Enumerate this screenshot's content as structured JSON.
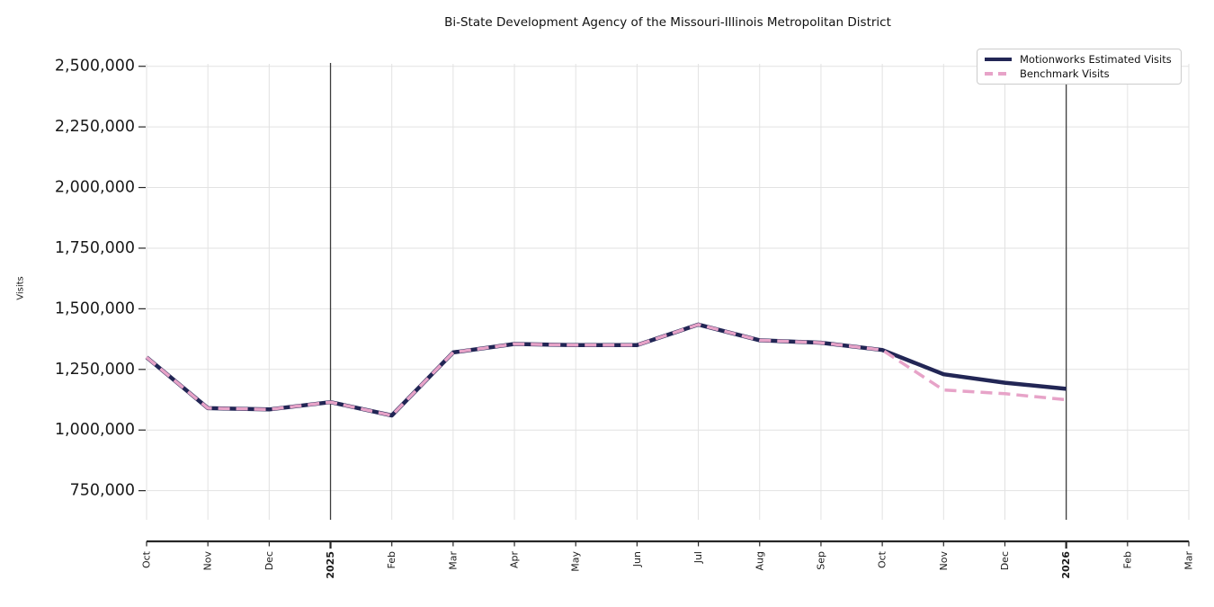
{
  "title": "Bi-State Development Agency of the Missouri-Illinois Metropolitan District",
  "legend": {
    "items": [
      {
        "label": "Motionworks Estimated Visits"
      },
      {
        "label": "Benchmark Visits"
      }
    ]
  },
  "chart_data": {
    "type": "line",
    "title": "Bi-State Development Agency of the Missouri-Illinois Metropolitan District",
    "xlabel": "",
    "ylabel": "Visits",
    "grid": true,
    "legend_position": "upper right",
    "x_tick_labels": [
      "Oct",
      "Nov",
      "Dec",
      "2025",
      "Feb",
      "Mar",
      "Apr",
      "May",
      "Jun",
      "Jul",
      "Aug",
      "Sep",
      "Oct",
      "Nov",
      "Dec",
      "2026",
      "Feb",
      "Mar"
    ],
    "x_bold_tick_indices": [
      3,
      15
    ],
    "reference_line_indices": [
      3,
      15
    ],
    "ylim": [
      630000,
      2510000
    ],
    "y_ticks": [
      {
        "value": 750000,
        "label": "750,000"
      },
      {
        "value": 1000000,
        "label": "1,000,000"
      },
      {
        "value": 1250000,
        "label": "1,250,000"
      },
      {
        "value": 1500000,
        "label": "1,500,000"
      },
      {
        "value": 1750000,
        "label": "1,750,000"
      },
      {
        "value": 2000000,
        "label": "2,000,000"
      },
      {
        "value": 2250000,
        "label": "2,250,000"
      },
      {
        "value": 2500000,
        "label": "2,500,000"
      }
    ],
    "colors": {
      "motionworks": "#222655",
      "benchmark": "#e7a3c8",
      "gridline": "#e2e2e2",
      "reference_line": "#3c3c3c",
      "axis": "#262626",
      "tick_text": "#1a1a1a"
    },
    "series": [
      {
        "name": "Motionworks Estimated Visits",
        "color": "#222655",
        "line_style": "solid",
        "line_width": 4.5,
        "values": [
          1300000,
          1090000,
          1085000,
          1115000,
          1060000,
          1320000,
          1355000,
          1350000,
          1350000,
          1435000,
          1370000,
          1360000,
          1330000,
          1230000,
          1195000,
          1170000,
          null,
          null
        ]
      },
      {
        "name": "Benchmark Visits",
        "color": "#e7a3c8",
        "line_style": "dashed",
        "line_width": 3.5,
        "dash_pattern": [
          13,
          7
        ],
        "values": [
          1300000,
          1090000,
          1085000,
          1115000,
          1060000,
          1320000,
          1355000,
          1350000,
          1350000,
          1435000,
          1370000,
          1360000,
          1330000,
          1165000,
          1150000,
          1125000,
          null,
          null
        ]
      }
    ]
  }
}
